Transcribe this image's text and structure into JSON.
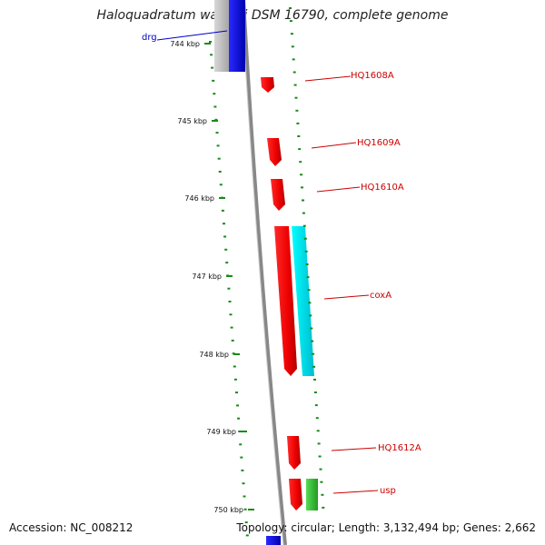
{
  "map": {
    "title": "Haloquadratum walsbyi DSM 16790, complete genome",
    "accession": "Accession: NC_008212",
    "summary": "Topology: circular; Length: 3,132,494 bp; Genes: 2,662",
    "ticks": [
      "744 kbp",
      "745 kbp",
      "746 kbp",
      "747 kbp",
      "748 kbp",
      "749 kbp",
      "750 kbp"
    ],
    "genes": [
      {
        "label": "drg",
        "color": "#0000cc"
      },
      {
        "label": "HQ1608A",
        "color": "#cc0000"
      },
      {
        "label": "HQ1609A",
        "color": "#cc0000"
      },
      {
        "label": "HQ1610A",
        "color": "#cc0000"
      },
      {
        "label": "coxA",
        "color": "#cc0000"
      },
      {
        "label": "HQ1612A",
        "color": "#cc0000"
      },
      {
        "label": "usp",
        "color": "#cc0000"
      }
    ],
    "colors": {
      "forward_cds": "#ff0000",
      "reverse_blue": "#0000ff",
      "orf_cyan": "#00e5ee",
      "orf_green": "#33cc33",
      "orf_grey": "#bbbbbb",
      "tick_green": "#1a8a1a",
      "backbone": "#888888"
    }
  }
}
